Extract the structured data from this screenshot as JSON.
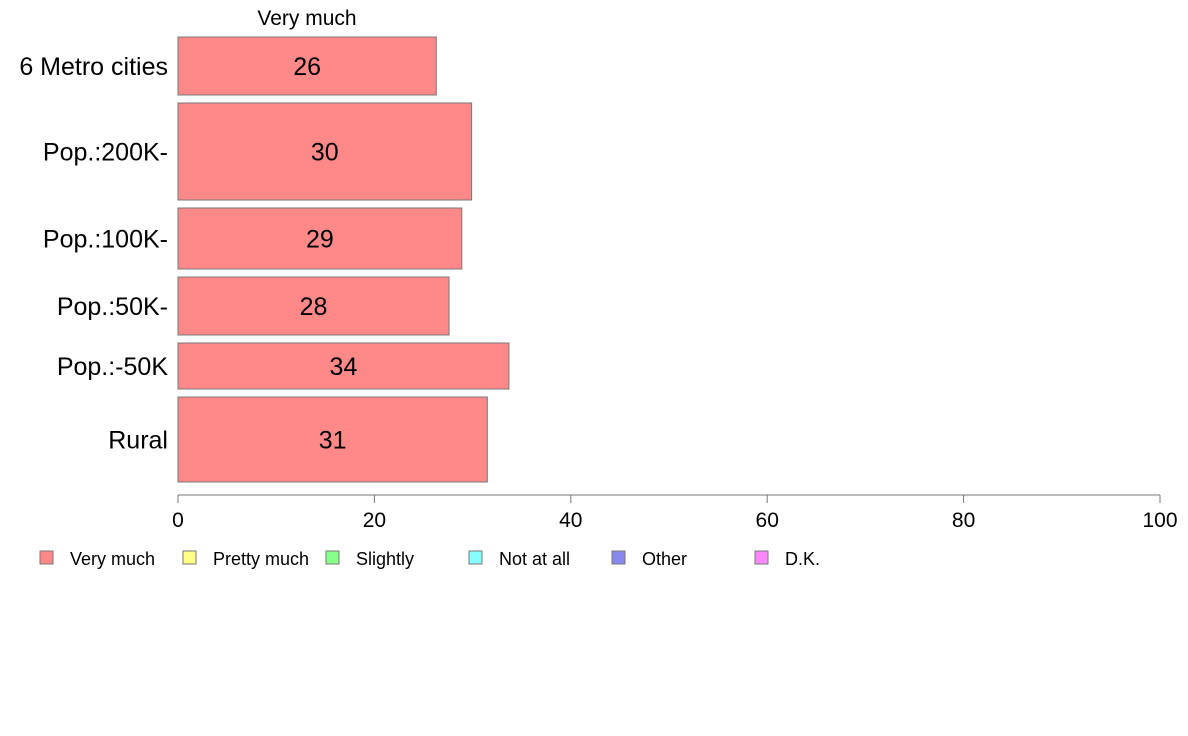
{
  "chart_data": {
    "type": "bar",
    "orientation": "horizontal",
    "stacked": true,
    "top_label": "Very much",
    "categories": [
      "6 Metro cities",
      "Pop.:200K-",
      "Pop.:100K-",
      "Pop.:50K-",
      "Pop.:-50K",
      "Rural"
    ],
    "series": [
      {
        "name": "Very much",
        "color": "#ff8888",
        "values": [
          26.3,
          29.9,
          28.9,
          27.6,
          33.7,
          31.5
        ],
        "labels": [
          "26",
          "30",
          "29",
          "28",
          "34",
          "31"
        ]
      }
    ],
    "xlim": [
      0,
      100
    ],
    "xticks": [
      0,
      20,
      40,
      60,
      80,
      100
    ],
    "grid": false,
    "legend_position": "bottom-left",
    "legend": [
      {
        "label": "Very much",
        "color": "#ff8888"
      },
      {
        "label": "Pretty much",
        "color": "#ffff88"
      },
      {
        "label": "Slightly",
        "color": "#88ff88"
      },
      {
        "label": "Not at all",
        "color": "#88ffff"
      },
      {
        "label": "Other",
        "color": "#8888ee"
      },
      {
        "label": "D.K.",
        "color": "#ff88ff"
      }
    ]
  }
}
